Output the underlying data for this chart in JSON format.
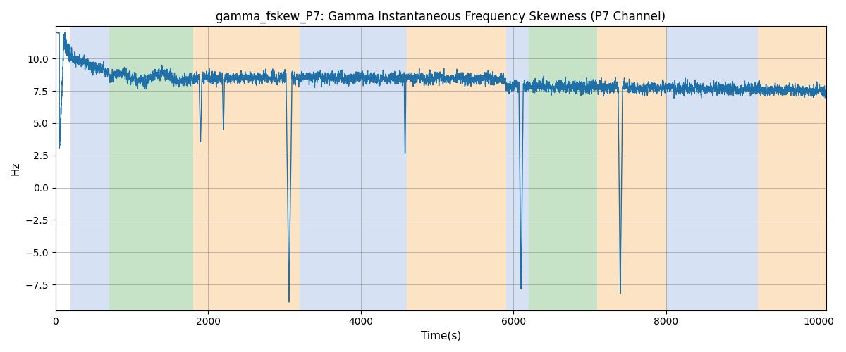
{
  "title": "gamma_fskew_P7: Gamma Instantaneous Frequency Skewness (P7 Channel)",
  "xlabel": "Time(s)",
  "ylabel": "Hz",
  "xlim": [
    0,
    10100
  ],
  "ylim": [
    -9.5,
    12.5
  ],
  "yticks": [
    -7.5,
    -5.0,
    -2.5,
    0.0,
    2.5,
    5.0,
    7.5,
    10.0
  ],
  "xticks": [
    0,
    2000,
    4000,
    6000,
    8000,
    10000
  ],
  "line_color": "#1f6fa8",
  "line_width": 1.0,
  "bg_bands": [
    {
      "xmin": 200,
      "xmax": 700,
      "color": "#aec6e8",
      "alpha": 0.5
    },
    {
      "xmin": 700,
      "xmax": 1800,
      "color": "#90c990",
      "alpha": 0.5
    },
    {
      "xmin": 1800,
      "xmax": 3200,
      "color": "#f9c88a",
      "alpha": 0.5
    },
    {
      "xmin": 3200,
      "xmax": 4600,
      "color": "#aec6e8",
      "alpha": 0.5
    },
    {
      "xmin": 4600,
      "xmax": 5900,
      "color": "#f9c88a",
      "alpha": 0.5
    },
    {
      "xmin": 5900,
      "xmax": 6200,
      "color": "#aec6e8",
      "alpha": 0.5
    },
    {
      "xmin": 6200,
      "xmax": 7100,
      "color": "#90c990",
      "alpha": 0.5
    },
    {
      "xmin": 7100,
      "xmax": 8000,
      "color": "#f9c88a",
      "alpha": 0.5
    },
    {
      "xmin": 8000,
      "xmax": 9200,
      "color": "#aec6e8",
      "alpha": 0.5
    },
    {
      "xmin": 9200,
      "xmax": 10100,
      "color": "#f9c88a",
      "alpha": 0.5
    }
  ],
  "seed": 42,
  "n_points": 10000
}
